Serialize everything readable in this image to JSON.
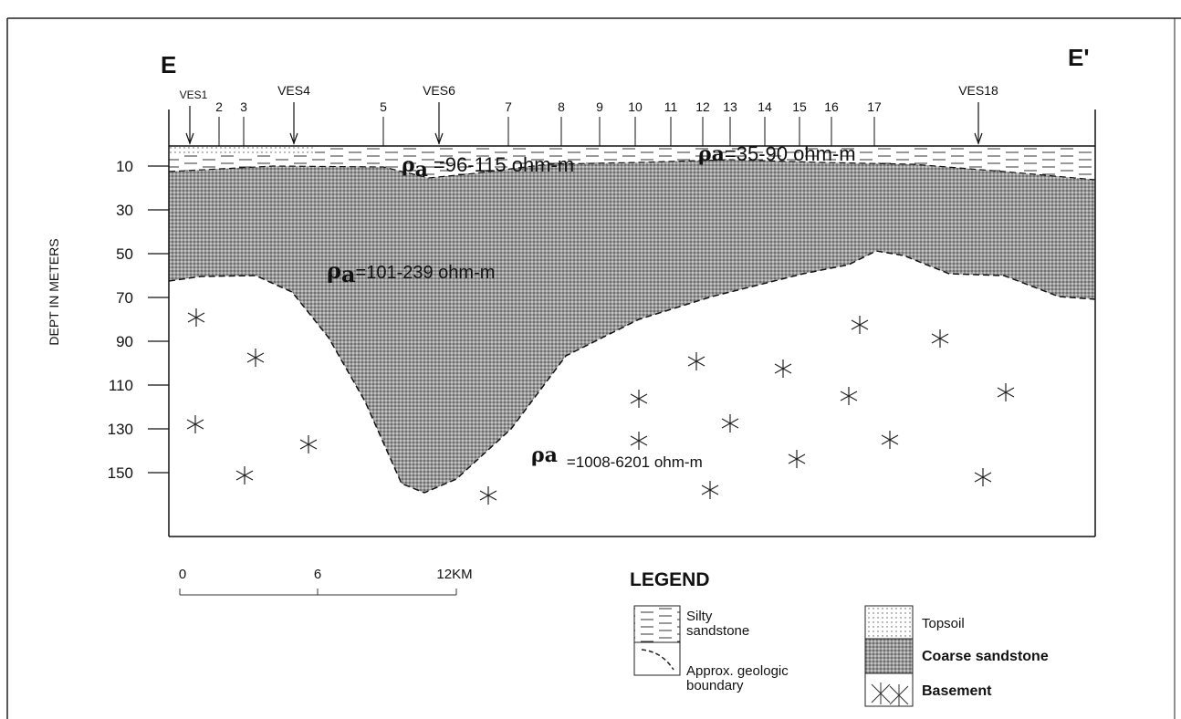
{
  "section": {
    "left_label": "E",
    "right_label": "E'",
    "stations": [
      "VES1",
      "2",
      "3",
      "VES4",
      "5",
      "VES6",
      "7",
      "8",
      "9",
      "10",
      "11",
      "12",
      "13",
      "14",
      "15",
      "16",
      "17",
      "VES18"
    ],
    "depth_axis": {
      "title": "DEPT IN METERS",
      "ticks": [
        10,
        30,
        50,
        70,
        90,
        110,
        130,
        150
      ]
    },
    "resistivity": [
      {
        "symbol": "ρ",
        "subscript": "a",
        "text": "=96-115 ohm-m"
      },
      {
        "symbol": "ρ",
        "subscript": "a",
        "text": "=35-90 ohm-m"
      },
      {
        "symbol": "ρ",
        "subscript": "a",
        "text": "=101-239 ohm-m"
      },
      {
        "symbol": "ρ",
        "subscript": "a",
        "text": "=1008-6201 ohm-m"
      }
    ]
  },
  "scale_bar": {
    "labels": [
      "0",
      "6",
      "12KM"
    ]
  },
  "legend": {
    "title": "LEGEND",
    "items": [
      {
        "lines": [
          "Silty",
          "sandstone"
        ]
      },
      {
        "lines": [
          "Approx. geologic",
          "boundary"
        ]
      },
      {
        "lines": [
          "Topsoil"
        ]
      },
      {
        "lines": [
          "Coarse sandstone"
        ]
      },
      {
        "lines": [
          "Basement"
        ]
      }
    ]
  }
}
